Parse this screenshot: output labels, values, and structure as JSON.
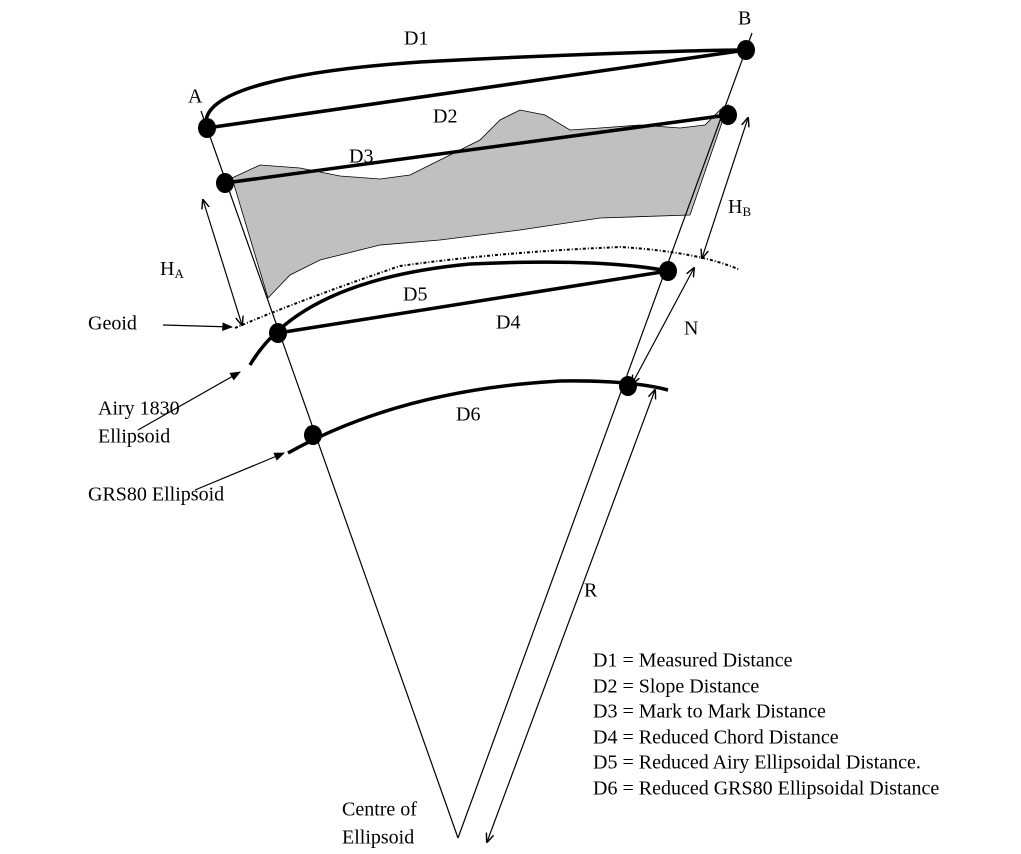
{
  "points": {
    "A": "A",
    "B": "B"
  },
  "distances": [
    "D1",
    "D2",
    "D3",
    "D4",
    "D5",
    "D6"
  ],
  "heights": [
    {
      "main": "H",
      "sub": "A"
    },
    {
      "main": "H",
      "sub": "B"
    }
  ],
  "N": "N",
  "R": "R",
  "surfaces": {
    "geoid": "Geoid",
    "airy": [
      "Airy 1830",
      "Ellipsoid"
    ],
    "grs80": "GRS80 Ellipsoid"
  },
  "centre": [
    "Centre of",
    "Ellipsoid"
  ],
  "legend": [
    "D1 = Measured Distance",
    "D2 = Slope Distance",
    "D3 = Mark to Mark Distance",
    "D4 = Reduced Chord Distance",
    "D5 = Reduced Airy Ellipsoidal Distance.",
    "D6 = Reduced GRS80 Ellipsoidal Distance"
  ]
}
